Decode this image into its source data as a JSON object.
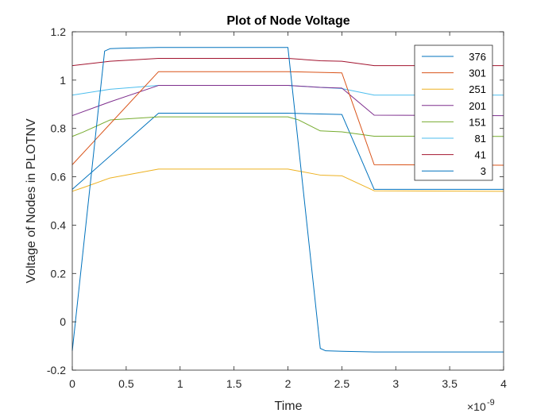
{
  "chart_data": {
    "type": "line",
    "title": "Plot of Node Voltage",
    "xlabel": "Time",
    "ylabel": "Voltage of Nodes in PLOTNV",
    "x_exponent": "×10",
    "x_exponent_power": "-9",
    "xlim": [
      0,
      4e-09
    ],
    "ylim": [
      -0.2,
      1.2
    ],
    "xticks": [
      0,
      5e-10,
      1e-09,
      1.5e-09,
      2e-09,
      2.5e-09,
      3e-09,
      3.5e-09,
      4e-09
    ],
    "xtick_labels": [
      "0",
      "0.5",
      "1",
      "1.5",
      "2",
      "2.5",
      "3",
      "3.5",
      "4"
    ],
    "yticks": [
      -0.2,
      0,
      0.2,
      0.4,
      0.6,
      0.8,
      1,
      1.2
    ],
    "ytick_labels": [
      "-0.2",
      "0",
      "0.2",
      "0.4",
      "0.6",
      "0.8",
      "1",
      "1.2"
    ],
    "grid": false,
    "legend_position": "top-right",
    "series": [
      {
        "name": "376",
        "color": "#0072BD",
        "x": [
          0,
          3e-10,
          3.5e-10,
          4.5e-10,
          8e-10,
          2e-09,
          2.3e-09,
          2.35e-09,
          2.5e-09,
          2.8e-09,
          4e-09
        ],
        "y": [
          -0.12,
          1.12,
          1.13,
          1.132,
          1.135,
          1.135,
          -0.11,
          -0.12,
          -0.122,
          -0.125,
          -0.125
        ]
      },
      {
        "name": "301",
        "color": "#D95319",
        "x": [
          0,
          8e-10,
          2e-09,
          2.5e-09,
          2.8e-09,
          4e-09
        ],
        "y": [
          0.65,
          1.035,
          1.035,
          1.03,
          0.65,
          0.648
        ]
      },
      {
        "name": "251",
        "color": "#EDB120",
        "x": [
          0,
          1e-10,
          3.5e-10,
          8e-10,
          2e-09,
          2.3e-09,
          2.5e-09,
          2.8e-09,
          4e-09
        ],
        "y": [
          0.54,
          0.555,
          0.595,
          0.632,
          0.632,
          0.607,
          0.604,
          0.542,
          0.54
        ]
      },
      {
        "name": "201",
        "color": "#7E2F8E",
        "x": [
          0,
          3.5e-10,
          8e-10,
          2e-09,
          2.3e-09,
          2.5e-09,
          2.8e-09,
          4e-09
        ],
        "y": [
          0.853,
          0.91,
          0.978,
          0.978,
          0.97,
          0.967,
          0.855,
          0.853
        ]
      },
      {
        "name": "151",
        "color": "#77AC30",
        "x": [
          0,
          1e-10,
          3.5e-10,
          8e-10,
          2e-09,
          2.1e-09,
          2.3e-09,
          2.5e-09,
          2.8e-09,
          4e-09
        ],
        "y": [
          0.767,
          0.785,
          0.835,
          0.848,
          0.848,
          0.835,
          0.79,
          0.786,
          0.768,
          0.767
        ]
      },
      {
        "name": "81",
        "color": "#4DBEEE",
        "x": [
          0,
          3.5e-10,
          8e-10,
          2e-09,
          2.3e-09,
          2.5e-09,
          2.8e-09,
          4e-09
        ],
        "y": [
          0.938,
          0.962,
          0.978,
          0.978,
          0.97,
          0.965,
          0.938,
          0.938
        ]
      },
      {
        "name": "41",
        "color": "#A2142F",
        "x": [
          0,
          3.5e-10,
          8e-10,
          2e-09,
          2.3e-09,
          2.5e-09,
          2.8e-09,
          4e-09
        ],
        "y": [
          1.06,
          1.078,
          1.09,
          1.09,
          1.08,
          1.078,
          1.06,
          1.06
        ]
      },
      {
        "name": "3",
        "color": "#0072BD",
        "x": [
          0,
          8e-10,
          2e-09,
          2.3e-09,
          2.5e-09,
          2.8e-09,
          4e-09
        ],
        "y": [
          0.548,
          0.863,
          0.863,
          0.86,
          0.858,
          0.548,
          0.548
        ]
      }
    ]
  }
}
